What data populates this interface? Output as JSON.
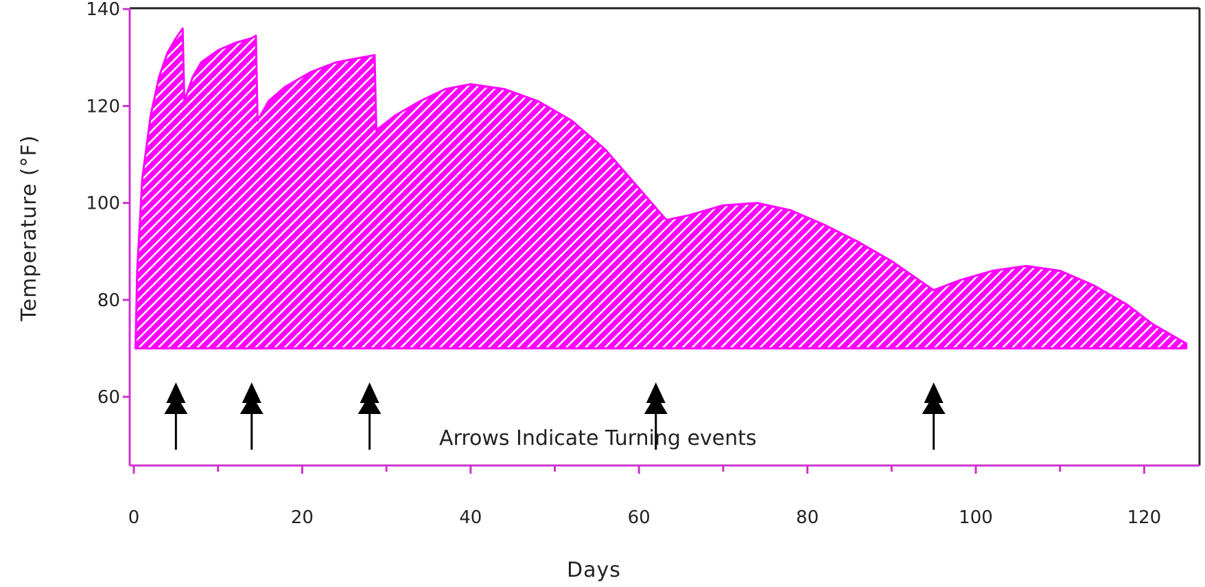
{
  "colors": {
    "fill": "#ff00ff",
    "stripe": "#ffffff",
    "axis": "#cc33cc",
    "frame": "#222222",
    "arrow": "#000000",
    "text": "#222222"
  },
  "chart_data": {
    "type": "area",
    "xlabel": "Days",
    "ylabel": "Temperature (°F)",
    "xlim": [
      0,
      125
    ],
    "ylim": [
      47,
      140
    ],
    "baseline": 70,
    "xticks": [
      0,
      20,
      40,
      60,
      80,
      100,
      120
    ],
    "yticks": [
      60,
      80,
      100,
      120,
      140
    ],
    "x_minor_ticks": [
      10,
      30,
      50,
      70,
      90,
      110
    ],
    "grid": false,
    "hatched": true,
    "annotation": "Arrows Indicate Turning events",
    "turning_events_days": [
      5,
      14,
      28,
      62,
      95
    ],
    "series": [
      {
        "points": [
          [
            0.2,
            70
          ],
          [
            0.4,
            86
          ],
          [
            1,
            105
          ],
          [
            2,
            118
          ],
          [
            3,
            126
          ],
          [
            4,
            131
          ],
          [
            5,
            134
          ],
          [
            5.8,
            136
          ],
          [
            6,
            121
          ],
          [
            7,
            126
          ],
          [
            8,
            129
          ],
          [
            10,
            131.5
          ],
          [
            12,
            133
          ],
          [
            14,
            134
          ],
          [
            14.5,
            134.5
          ],
          [
            14.7,
            117
          ],
          [
            16,
            121
          ],
          [
            18,
            124
          ],
          [
            21,
            127
          ],
          [
            24,
            129
          ],
          [
            27,
            130
          ],
          [
            28.6,
            130.5
          ],
          [
            28.8,
            115
          ],
          [
            31,
            118
          ],
          [
            34,
            121
          ],
          [
            37,
            123.5
          ],
          [
            40,
            124.5
          ],
          [
            44,
            123.5
          ],
          [
            48,
            121
          ],
          [
            52,
            117
          ],
          [
            56,
            111
          ],
          [
            60,
            103
          ],
          [
            63,
            97
          ],
          [
            63.3,
            96.5
          ],
          [
            66,
            97.5
          ],
          [
            70,
            99.5
          ],
          [
            74,
            100
          ],
          [
            78,
            98.5
          ],
          [
            82,
            95.5
          ],
          [
            86,
            92
          ],
          [
            90,
            88
          ],
          [
            95,
            82
          ],
          [
            98,
            84
          ],
          [
            102,
            86
          ],
          [
            106,
            87
          ],
          [
            110,
            86
          ],
          [
            114,
            83
          ],
          [
            118,
            79
          ],
          [
            121,
            75
          ],
          [
            124,
            72
          ],
          [
            125,
            71
          ],
          [
            125,
            70
          ]
        ]
      }
    ]
  }
}
